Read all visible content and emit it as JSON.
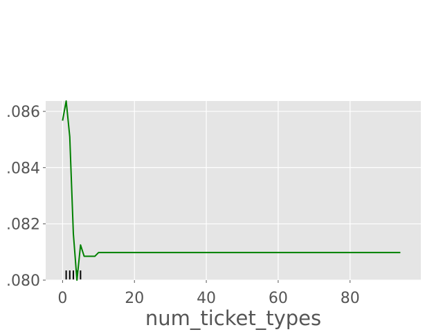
{
  "chart_data": {
    "type": "line",
    "title": "",
    "xlabel": "num_ticket_types",
    "ylabel": "",
    "xlim": [
      -4.7,
      99.7
    ],
    "ylim": [
      0.08,
      0.08637
    ],
    "grid": true,
    "legend": "none",
    "colors": {
      "background": "#e5e5e5",
      "grid": "#ffffff",
      "line": "#008000",
      "rug": "#000000",
      "tick_text": "#555555"
    },
    "x_ticks": [
      {
        "value": 0,
        "label": "0"
      },
      {
        "value": 20,
        "label": "20"
      },
      {
        "value": 40,
        "label": "40"
      },
      {
        "value": 60,
        "label": "60"
      },
      {
        "value": 80,
        "label": "80"
      }
    ],
    "y_ticks": [
      {
        "value": 0.08,
        "label": ".080"
      },
      {
        "value": 0.082,
        "label": ".082"
      },
      {
        "value": 0.084,
        "label": ".084"
      },
      {
        "value": 0.086,
        "label": ".086"
      }
    ],
    "series": [
      {
        "x": [
          0,
          1,
          2,
          3,
          4,
          5,
          6,
          7,
          8,
          9,
          10,
          11,
          12,
          15,
          20,
          30,
          40,
          50,
          60,
          70,
          80,
          90,
          94
        ],
        "y": [
          0.08567,
          0.08637,
          0.0851,
          0.08165,
          0.08,
          0.08125,
          0.08085,
          0.08085,
          0.08085,
          0.08085,
          0.08098,
          0.08098,
          0.08098,
          0.08098,
          0.08098,
          0.08098,
          0.08098,
          0.08098,
          0.08098,
          0.08098,
          0.08098,
          0.08098,
          0.08098
        ]
      }
    ],
    "rug_x": [
      1,
      2,
      3,
      4,
      5
    ]
  }
}
